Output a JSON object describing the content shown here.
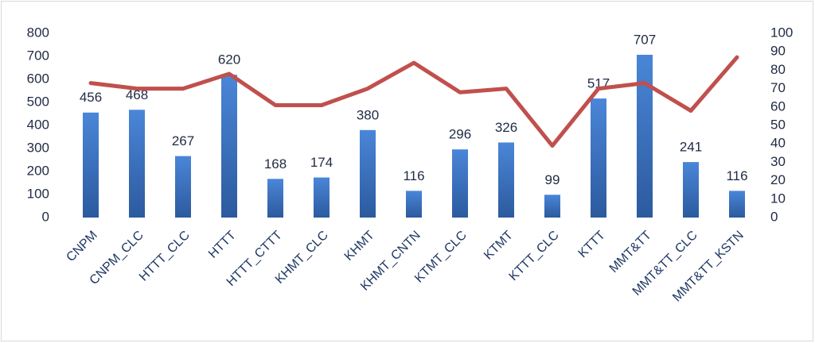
{
  "chart_data": {
    "type": "bar_line",
    "categories": [
      "CNPM",
      "CNPM_CLC",
      "HTTT_CLC",
      "HTTT",
      "HTTT_CTTT",
      "KHMT_CLC",
      "KHMT",
      "KHMT_CNTN",
      "KTMT_CLC",
      "KTMT",
      "KTTT_CLC",
      "KTTT",
      "MMT&TT",
      "MMT&TT_CLC",
      "MMT&TT_KSTN"
    ],
    "series": [
      {
        "type": "bar",
        "color": "#4472c4",
        "values": [
          456,
          468,
          267,
          620,
          168,
          174,
          380,
          116,
          296,
          326,
          99,
          517,
          707,
          241,
          116
        ]
      },
      {
        "type": "line",
        "color": "#c0504d",
        "axis": "y2",
        "values": [
          73,
          70,
          70,
          78,
          61,
          61,
          70,
          84,
          68,
          70,
          39,
          70,
          73,
          58,
          87
        ]
      }
    ],
    "ylim": [
      0,
      800
    ],
    "yticks": [
      0,
      100,
      200,
      300,
      400,
      500,
      600,
      700,
      800
    ],
    "y2lim": [
      0,
      100
    ],
    "y2ticks": [
      0,
      10,
      20,
      30,
      40,
      50,
      60,
      70,
      80,
      90,
      100
    ],
    "grid": false
  }
}
